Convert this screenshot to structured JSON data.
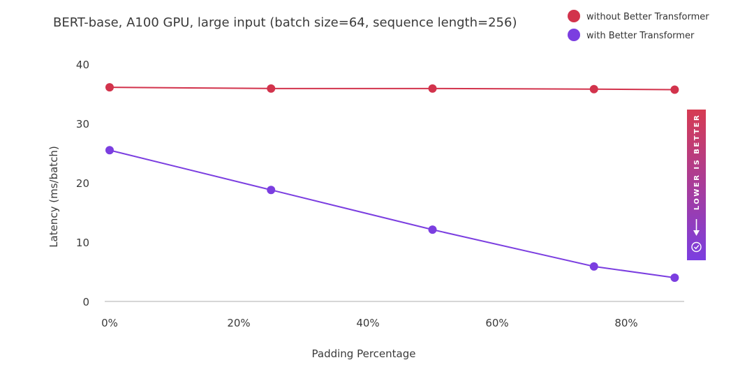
{
  "chart_data": {
    "type": "line",
    "title": "BERT-base, A100 GPU, large input (batch size=64, sequence length=256)",
    "xlabel": "Padding Percentage",
    "ylabel": "Latency (ms/batch)",
    "xlim": [
      0,
      88
    ],
    "ylim": [
      0,
      40
    ],
    "x": [
      0,
      25,
      50,
      75,
      87.5
    ],
    "x_ticks": [
      {
        "value": 0,
        "label": "0%"
      },
      {
        "value": 20,
        "label": "20%"
      },
      {
        "value": 40,
        "label": "40%"
      },
      {
        "value": 60,
        "label": "60%"
      },
      {
        "value": 80,
        "label": "80%"
      }
    ],
    "y_ticks": [
      {
        "value": 0,
        "label": "0"
      },
      {
        "value": 10,
        "label": "10"
      },
      {
        "value": 20,
        "label": "20"
      },
      {
        "value": 30,
        "label": "30"
      },
      {
        "value": 40,
        "label": "40"
      }
    ],
    "grid": false,
    "legend_position": "top-right",
    "series": [
      {
        "name": "without Better Transformer",
        "color": "#d2334c",
        "values": [
          36.1,
          35.9,
          35.9,
          35.8,
          35.7
        ]
      },
      {
        "name": "with Better Transformer",
        "color": "#7b3ee0",
        "values": [
          25.5,
          18.8,
          12.1,
          5.9,
          4.0
        ]
      }
    ],
    "annotation": {
      "text": "LOWER IS BETTER",
      "gradient_top": "#d63b52",
      "gradient_bottom": "#7b3ee0"
    }
  }
}
